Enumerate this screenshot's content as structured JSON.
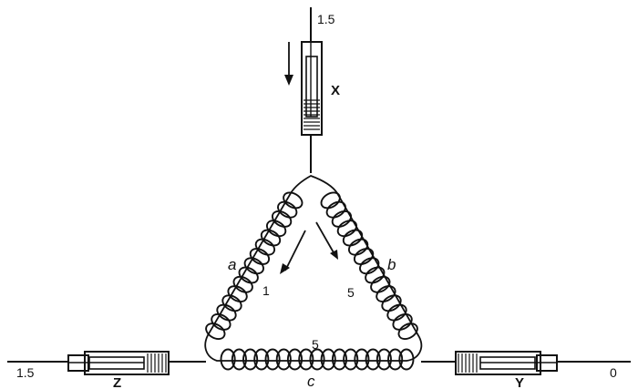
{
  "diagram": {
    "labels": {
      "top_value": "1.5",
      "left_value": "1.5",
      "right_value": "0",
      "cylinder_x": "X",
      "cylinder_y": "Y",
      "cylinder_z": "Z",
      "spring_a": "a",
      "spring_b": "b",
      "spring_c": "c",
      "spring_a_value": "1",
      "spring_b_value": "5",
      "spring_c_value": "5"
    },
    "springs": [
      {
        "name": "spring-a",
        "turns": 15
      },
      {
        "name": "spring-b",
        "turns": 15
      },
      {
        "name": "spring-c",
        "turns": 17
      }
    ]
  }
}
